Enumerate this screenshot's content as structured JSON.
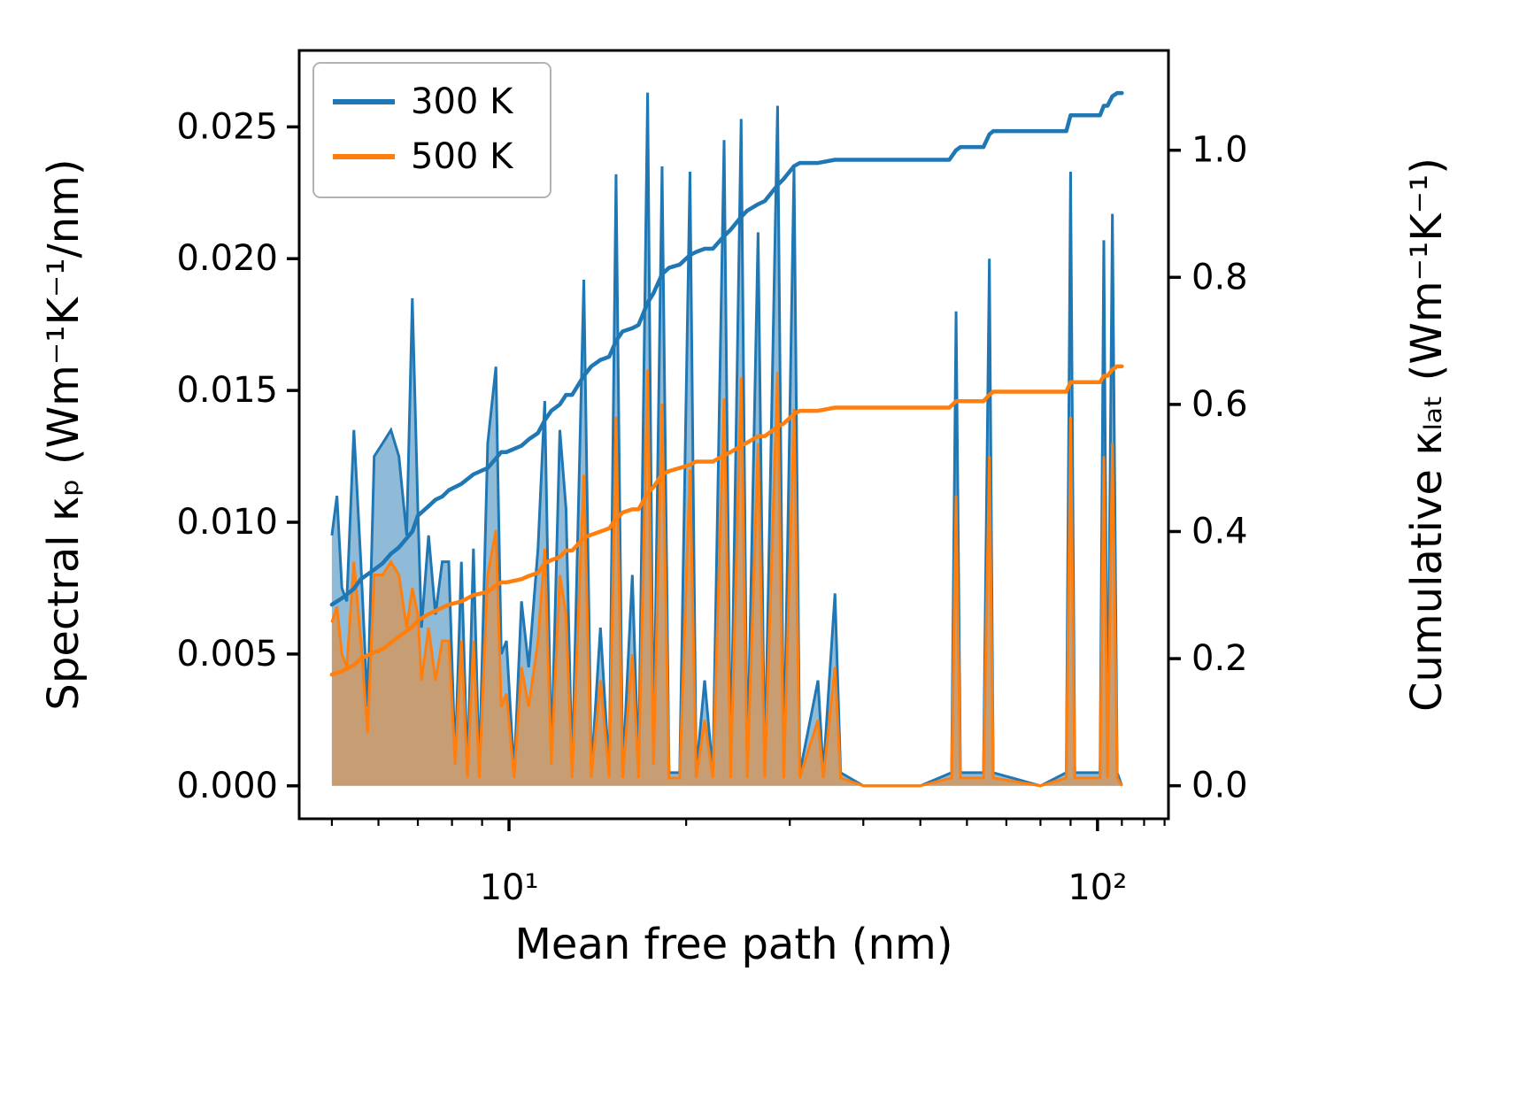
{
  "figure": {
    "background": "#ffffff",
    "frame_color": "#000000",
    "legend_border_color": "#b3b3b3"
  },
  "chart_data": {
    "type": "area+line combo (spectral and cumulative thermal conductivity vs mean free path)",
    "xlabel": "Mean free path (nm)",
    "ylabel_left": "Spectral κₚ (Wm⁻¹K⁻¹/nm)",
    "ylabel_right": "Cumulative κₗₐₜ (Wm⁻¹K⁻¹)",
    "x_scale": "log",
    "xlim": [
      4.4,
      132
    ],
    "ylim_left": [
      -0.00125,
      0.0279
    ],
    "ylim_right": [
      -0.052,
      1.157
    ],
    "grid": false,
    "legend": {
      "position": "upper-left",
      "entries": [
        {
          "label": "300 K",
          "color": "#1f77b4"
        },
        {
          "label": "500 K",
          "color": "#ff7f0e"
        }
      ]
    },
    "x_ticks": [
      {
        "value": 10,
        "label": "10¹"
      },
      {
        "value": 100,
        "label": "10²"
      }
    ],
    "x_minor_ticks": [
      5,
      6,
      7,
      8,
      9,
      20,
      30,
      40,
      50,
      60,
      70,
      80,
      90,
      110,
      120,
      130
    ],
    "y_ticks_left": [
      {
        "value": 0.0,
        "label": "0.000"
      },
      {
        "value": 0.005,
        "label": "0.005"
      },
      {
        "value": 0.01,
        "label": "0.010"
      },
      {
        "value": 0.015,
        "label": "0.015"
      },
      {
        "value": 0.02,
        "label": "0.020"
      },
      {
        "value": 0.025,
        "label": "0.025"
      }
    ],
    "y_ticks_right": [
      {
        "value": 0.0,
        "label": "0.0"
      },
      {
        "value": 0.2,
        "label": "0.2"
      },
      {
        "value": 0.4,
        "label": "0.4"
      },
      {
        "value": 0.6,
        "label": "0.6"
      },
      {
        "value": 0.8,
        "label": "0.8"
      },
      {
        "value": 1.0,
        "label": "1.0"
      }
    ],
    "series": [
      {
        "name": "300 K spectral",
        "axis": "left",
        "style": "area",
        "color": "#1f77b4",
        "fill_opacity": 0.5,
        "x": [
          5.0,
          5.1,
          5.2,
          5.3,
          5.45,
          5.6,
          5.75,
          5.9,
          6.1,
          6.3,
          6.5,
          6.7,
          6.85,
          7.0,
          7.1,
          7.3,
          7.5,
          7.7,
          7.9,
          8.1,
          8.3,
          8.5,
          8.7,
          8.9,
          9.2,
          9.5,
          9.7,
          9.9,
          10.2,
          10.5,
          10.8,
          11.2,
          11.5,
          11.8,
          12.2,
          12.5,
          12.8,
          13.4,
          13.8,
          14.3,
          14.8,
          15.2,
          15.6,
          16.2,
          16.6,
          17.2,
          17.6,
          18.2,
          18.7,
          19.5,
          20.3,
          20.8,
          21.5,
          22.2,
          23.2,
          23.8,
          24.8,
          25.4,
          26.5,
          27.2,
          28.6,
          29.3,
          30.5,
          31.2,
          33.5,
          34.2,
          35.8,
          36.6,
          40,
          50,
          56.5,
          57.5,
          58.5,
          64,
          65.5,
          66.5,
          80,
          88.5,
          90,
          91.5,
          101,
          102.5,
          104,
          106,
          108,
          110
        ],
        "y": [
          0.0095,
          0.011,
          0.0075,
          0.007,
          0.0135,
          0.0085,
          0.003,
          0.0125,
          0.013,
          0.0135,
          0.0125,
          0.0095,
          0.0185,
          0.0105,
          0.006,
          0.0095,
          0.0065,
          0.0085,
          0.0085,
          0.001,
          0.0085,
          0.0005,
          0.009,
          0.0005,
          0.013,
          0.0159,
          0.005,
          0.0055,
          0.0005,
          0.007,
          0.0045,
          0.009,
          0.0146,
          0.001,
          0.0135,
          0.0105,
          0.0005,
          0.0192,
          0.0005,
          0.006,
          0.0005,
          0.0232,
          0.0005,
          0.008,
          0.0005,
          0.0263,
          0.001,
          0.0235,
          0.0005,
          0.0005,
          0.0233,
          0.0005,
          0.004,
          0.0005,
          0.0245,
          0.0005,
          0.0253,
          0.0005,
          0.021,
          0.0005,
          0.0258,
          0.0005,
          0.0235,
          0.0005,
          0.004,
          0.0005,
          0.0073,
          0.0005,
          0.0,
          0.0,
          0.0005,
          0.018,
          0.0005,
          0.0005,
          0.02,
          0.0005,
          0.0,
          0.0005,
          0.0233,
          0.0005,
          0.0005,
          0.0207,
          0.0005,
          0.0217,
          0.0005,
          0.0
        ]
      },
      {
        "name": "500 K spectral",
        "axis": "left",
        "style": "area",
        "color": "#ff7f0e",
        "fill_opacity": 0.5,
        "x": [
          5.0,
          5.1,
          5.2,
          5.3,
          5.45,
          5.6,
          5.75,
          5.9,
          6.1,
          6.3,
          6.5,
          6.7,
          6.85,
          7.0,
          7.1,
          7.3,
          7.5,
          7.7,
          7.9,
          8.1,
          8.3,
          8.5,
          8.7,
          8.9,
          9.2,
          9.5,
          9.7,
          9.9,
          10.2,
          10.5,
          10.8,
          11.2,
          11.5,
          11.8,
          12.2,
          12.5,
          12.8,
          13.4,
          13.8,
          14.3,
          14.8,
          15.2,
          15.6,
          16.2,
          16.6,
          17.2,
          17.6,
          18.2,
          18.7,
          19.5,
          20.3,
          20.8,
          21.5,
          22.2,
          23.2,
          23.8,
          24.8,
          25.4,
          26.5,
          27.2,
          28.6,
          29.3,
          30.5,
          31.2,
          33.5,
          34.2,
          35.8,
          36.6,
          40,
          50,
          56.5,
          57.5,
          58.5,
          64,
          65.5,
          66.5,
          80,
          88.5,
          90,
          91.5,
          101,
          102.5,
          104,
          106,
          108,
          110
        ],
        "y": [
          0.0062,
          0.0068,
          0.005,
          0.0045,
          0.0085,
          0.0055,
          0.002,
          0.008,
          0.008,
          0.0085,
          0.008,
          0.006,
          0.0075,
          0.0065,
          0.004,
          0.006,
          0.004,
          0.0055,
          0.0055,
          0.0008,
          0.0055,
          0.0003,
          0.0055,
          0.0003,
          0.008,
          0.0097,
          0.003,
          0.0035,
          0.0003,
          0.0045,
          0.003,
          0.0055,
          0.009,
          0.0008,
          0.008,
          0.0065,
          0.0003,
          0.0118,
          0.0003,
          0.004,
          0.0003,
          0.014,
          0.0003,
          0.005,
          0.0003,
          0.0158,
          0.0008,
          0.0145,
          0.0003,
          0.0003,
          0.012,
          0.0003,
          0.0025,
          0.0003,
          0.0147,
          0.0003,
          0.0155,
          0.0003,
          0.013,
          0.0003,
          0.0157,
          0.0003,
          0.0143,
          0.0003,
          0.0025,
          0.0003,
          0.0045,
          0.0003,
          0.0,
          0.0,
          0.0003,
          0.011,
          0.0003,
          0.0003,
          0.0125,
          0.0003,
          0.0,
          0.0003,
          0.014,
          0.0003,
          0.0003,
          0.0125,
          0.0003,
          0.013,
          0.0003,
          0.0
        ]
      },
      {
        "name": "300 K cumulative",
        "axis": "right",
        "style": "line",
        "color": "#1f77b4",
        "x": [
          5.0,
          5.2,
          5.45,
          5.6,
          5.9,
          6.1,
          6.3,
          6.5,
          6.85,
          7.0,
          7.3,
          7.5,
          7.7,
          7.9,
          8.3,
          8.7,
          9.2,
          9.5,
          9.7,
          9.9,
          10.5,
          10.8,
          11.2,
          11.5,
          11.8,
          12.2,
          12.5,
          12.8,
          13.4,
          13.8,
          14.3,
          14.8,
          15.2,
          15.6,
          16.2,
          16.6,
          17.2,
          17.6,
          18.2,
          18.7,
          19.5,
          20.3,
          20.8,
          21.5,
          22.2,
          23.2,
          23.8,
          24.8,
          25.4,
          26.5,
          27.2,
          28.6,
          29.3,
          30.5,
          31.2,
          33.5,
          35.8,
          36.6,
          40,
          50,
          56,
          57.5,
          58.5,
          64,
          65.5,
          66.5,
          80,
          88.5,
          90,
          91.5,
          101,
          102.5,
          104,
          106,
          108,
          110
        ],
        "y": [
          0.285,
          0.295,
          0.31,
          0.325,
          0.34,
          0.35,
          0.365,
          0.375,
          0.4,
          0.425,
          0.44,
          0.45,
          0.455,
          0.465,
          0.475,
          0.49,
          0.5,
          0.515,
          0.525,
          0.525,
          0.535,
          0.545,
          0.555,
          0.575,
          0.59,
          0.6,
          0.615,
          0.615,
          0.645,
          0.66,
          0.67,
          0.675,
          0.7,
          0.715,
          0.72,
          0.725,
          0.76,
          0.775,
          0.805,
          0.815,
          0.82,
          0.835,
          0.84,
          0.845,
          0.845,
          0.865,
          0.875,
          0.895,
          0.905,
          0.915,
          0.92,
          0.945,
          0.955,
          0.975,
          0.98,
          0.98,
          0.985,
          0.985,
          0.985,
          0.985,
          0.985,
          1.0,
          1.005,
          1.005,
          1.025,
          1.03,
          1.03,
          1.03,
          1.055,
          1.055,
          1.055,
          1.07,
          1.07,
          1.085,
          1.09,
          1.09
        ]
      },
      {
        "name": "500 K cumulative",
        "axis": "right",
        "style": "line",
        "color": "#ff7f0e",
        "x": [
          5.0,
          5.2,
          5.45,
          5.6,
          5.9,
          6.1,
          6.3,
          6.5,
          6.85,
          7.0,
          7.3,
          7.5,
          7.7,
          7.9,
          8.3,
          8.7,
          9.2,
          9.5,
          9.7,
          9.9,
          10.5,
          10.8,
          11.2,
          11.5,
          11.8,
          12.2,
          12.5,
          12.8,
          13.4,
          13.8,
          14.3,
          14.8,
          15.2,
          15.6,
          16.2,
          16.6,
          17.2,
          17.6,
          18.2,
          18.7,
          19.5,
          20.3,
          20.8,
          21.5,
          22.2,
          23.2,
          23.8,
          24.8,
          25.4,
          26.5,
          27.2,
          28.6,
          29.3,
          30.5,
          31.2,
          33.5,
          35.8,
          36.6,
          40,
          50,
          56,
          57.5,
          58.5,
          64,
          65.5,
          66.5,
          80,
          88.5,
          90,
          91.5,
          101,
          102.5,
          104,
          106,
          108,
          110
        ],
        "y": [
          0.175,
          0.18,
          0.19,
          0.2,
          0.21,
          0.215,
          0.225,
          0.235,
          0.25,
          0.26,
          0.27,
          0.275,
          0.28,
          0.285,
          0.29,
          0.3,
          0.305,
          0.315,
          0.32,
          0.32,
          0.325,
          0.33,
          0.335,
          0.35,
          0.355,
          0.36,
          0.37,
          0.37,
          0.39,
          0.395,
          0.4,
          0.405,
          0.42,
          0.43,
          0.435,
          0.435,
          0.46,
          0.47,
          0.49,
          0.495,
          0.5,
          0.505,
          0.51,
          0.51,
          0.51,
          0.52,
          0.525,
          0.535,
          0.54,
          0.55,
          0.55,
          0.565,
          0.57,
          0.585,
          0.59,
          0.59,
          0.595,
          0.595,
          0.595,
          0.595,
          0.595,
          0.605,
          0.605,
          0.605,
          0.615,
          0.62,
          0.62,
          0.62,
          0.635,
          0.635,
          0.635,
          0.645,
          0.645,
          0.655,
          0.66,
          0.66
        ]
      }
    ]
  }
}
